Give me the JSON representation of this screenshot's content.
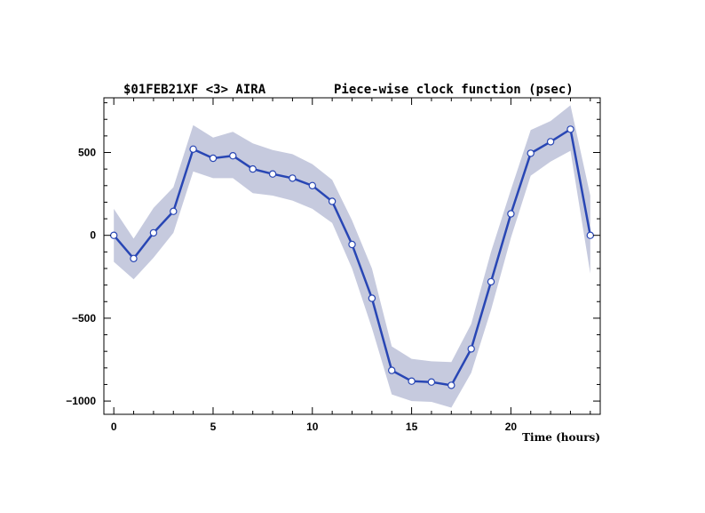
{
  "chart_data": {
    "type": "line",
    "title_left": "$01FEB21XF <3>  AIRA",
    "title_right": "Piece-wise clock function (psec)",
    "xlabel": "Time (hours)",
    "ylabel": "",
    "xlim": [
      -0.5,
      24.5
    ],
    "ylim": [
      -1080,
      830
    ],
    "x_ticks": [
      0,
      5,
      10,
      15,
      20
    ],
    "y_ticks": [
      -1000,
      -500,
      0,
      500
    ],
    "y_tick_labels": [
      "−1000",
      "−500",
      "0",
      "500"
    ],
    "grid": false,
    "line_color": "#2846b4",
    "band_color": "#c6cade",
    "series": [
      {
        "x": [
          0,
          1,
          2,
          3,
          4,
          5,
          6,
          7,
          8,
          9,
          10,
          11,
          12,
          13,
          14,
          15,
          16,
          17,
          18,
          19,
          20,
          21,
          22,
          23,
          24
        ],
        "values": [
          0,
          -140,
          15,
          145,
          520,
          465,
          480,
          400,
          370,
          345,
          300,
          205,
          -55,
          -380,
          -815,
          -880,
          -885,
          -905,
          -685,
          -280,
          130,
          495,
          565,
          640,
          0
        ],
        "upper": [
          160,
          -20,
          165,
          290,
          665,
          590,
          625,
          555,
          515,
          490,
          430,
          335,
          90,
          -200,
          -670,
          -745,
          -760,
          -765,
          -535,
          -100,
          275,
          635,
          690,
          785,
          240
        ],
        "lower": [
          -160,
          -265,
          -135,
          15,
          385,
          345,
          345,
          255,
          240,
          210,
          160,
          75,
          -200,
          -560,
          -960,
          -1000,
          -1005,
          -1040,
          -830,
          -450,
          -15,
          360,
          445,
          510,
          -230
        ]
      }
    ]
  }
}
